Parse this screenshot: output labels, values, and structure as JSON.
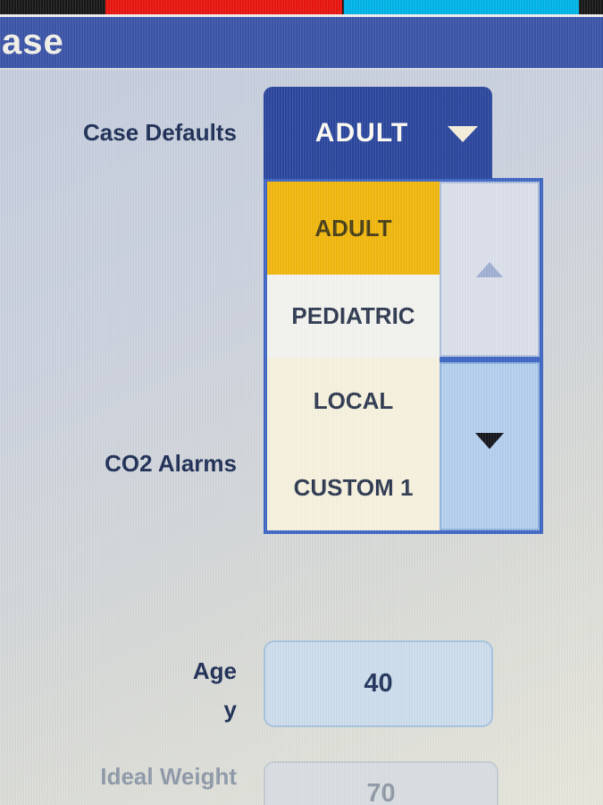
{
  "title_bar": {
    "title": "ase"
  },
  "form": {
    "case_defaults": {
      "label": "Case Defaults",
      "selected_value": "ADULT",
      "dropdown": {
        "open": true,
        "items": [
          {
            "label": "ADULT",
            "selected": true
          },
          {
            "label": "PEDIATRIC",
            "selected": false
          },
          {
            "label": "LOCAL",
            "selected": false
          },
          {
            "label": "CUSTOM 1",
            "selected": false
          }
        ]
      }
    },
    "co2_alarms": {
      "label": "CO2 Alarms"
    },
    "age": {
      "label": "Age",
      "unit": "y",
      "value": "40"
    },
    "ideal_weight": {
      "label": "Ideal Weight",
      "value": "70",
      "disabled": true
    }
  },
  "colors": {
    "title_bar_bg": "#3b54a7",
    "combo_button_bg": "#2b469c",
    "selected_item_bg": "#f1b70e",
    "dropdown_border": "#3e66c4",
    "scroll_down_bg": "#b4cfee",
    "field_bg": "#cddcec",
    "status_red": "#e8140e",
    "status_cyan": "#00b3e6"
  }
}
